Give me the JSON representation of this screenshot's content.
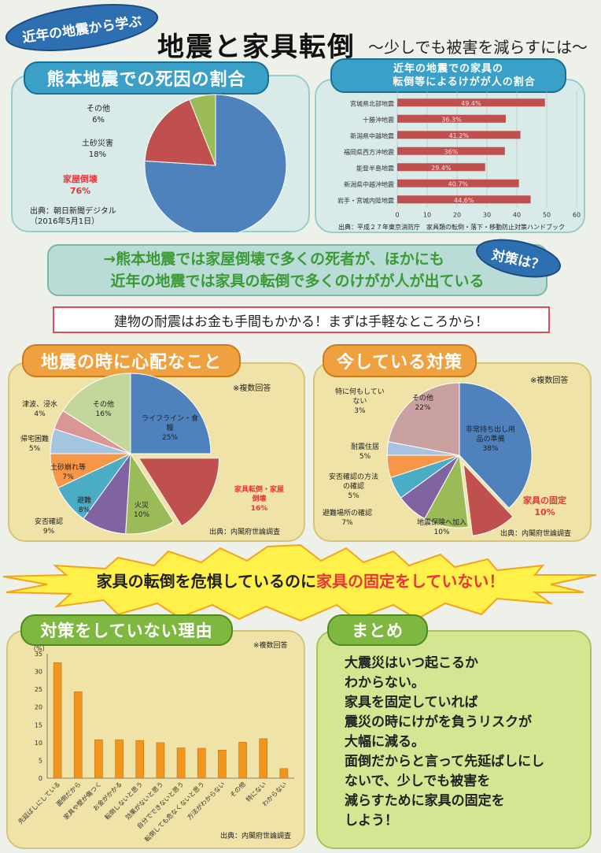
{
  "title": {
    "badge": "近年の地震から学ぶ",
    "main": "地震と家具転倒",
    "sub": "～少しでも被害を減らすには～"
  },
  "kumamoto": {
    "header": "熊本地震での死因の割合",
    "source_line1": "出典：朝日新聞デジタル",
    "source_line2": "（2016年5月1日）",
    "labels": [
      {
        "name": "その他",
        "pct": "6%"
      },
      {
        "name": "土砂災害",
        "pct": "18%"
      },
      {
        "name": "家屋倒壊",
        "pct": "76%"
      }
    ],
    "colors": {
      "house": "#4f81bd",
      "landslide": "#c0504d",
      "other": "#9bbb59",
      "highlight": "#e8333a"
    }
  },
  "injury": {
    "header_line1": "近年の地震での家具の",
    "header_line2": "転倒等によるけがが人の割合",
    "source": "出典：平成２７年東京消防庁　家具類の転倒・落下・移動防止対策ハンドブック",
    "xticks": [
      "0",
      "10",
      "20",
      "30",
      "40",
      "50",
      "60"
    ]
  },
  "conclusion": {
    "line1": "→熊本地震では家屋倒壊で多くの死者が、ほかにも",
    "line2": "近年の地震では家具の転倒で多くのけがが人が出ている",
    "bubble": "対策は？"
  },
  "tip": "建物の耐震はお金も手間もかかる！まずは手軽なところから！",
  "worry": {
    "header": "地震の時に心配なこと",
    "note": "※複数回答",
    "source": "出典：内閣府世論調査",
    "labels": [
      {
        "name": "ライフライン・食",
        "name2": "糧",
        "pct": "25%"
      },
      {
        "name": "家具転倒・家屋",
        "name2": "倒壊",
        "pct": "16%"
      },
      {
        "name": "火災",
        "pct": "10%"
      },
      {
        "name": "安否確認",
        "pct": "9%"
      },
      {
        "name": "避難",
        "pct": "8%"
      },
      {
        "name": "土砂崩れ等",
        "pct": "7%"
      },
      {
        "name": "帰宅困難",
        "pct": "5%"
      },
      {
        "name": "津波、浸水",
        "pct": "4%"
      },
      {
        "name": "その他",
        "pct": "16%"
      }
    ]
  },
  "measures": {
    "header": "今している対策",
    "note": "※複数回答",
    "source": "出典：内閣府世論調査",
    "labels": [
      {
        "name": "非常持ち出し用",
        "name2": "品の準備",
        "pct": "38%"
      },
      {
        "name": "家具の固定",
        "pct": "10%"
      },
      {
        "name": "地震保険へ加入",
        "pct": "10%"
      },
      {
        "name": "避難場所の確認",
        "pct": "7%"
      },
      {
        "name": "安否確認の方法",
        "name2": "の確認",
        "pct": "5%"
      },
      {
        "name": "耐震住居",
        "pct": "5%"
      },
      {
        "name": "特に何もしてい",
        "name2": "ない",
        "pct": "3%"
      },
      {
        "name": "その他",
        "pct": "22%"
      }
    ]
  },
  "banner": {
    "part1": "家具の転倒を危惧しているのに",
    "part2": "家具の固定をしていない！"
  },
  "reasons": {
    "header": "対策をしていない理由",
    "note": "※複数回答",
    "unit": "（%）",
    "source": "出典：内閣府世論調査"
  },
  "summary": {
    "header": "まとめ",
    "lines": [
      "大震災はいつ起こるか",
      "わからない。",
      "家具を固定していれば",
      "震災の時にけがを負うリスクが",
      "大幅に減る。",
      "面倒だからと言って先延ばしにし",
      "ないで、少しでも被害を",
      "減らすために家具の固定を",
      "しよう！"
    ]
  },
  "chart_data": [
    {
      "type": "pie",
      "title": "熊本地震での死因の割合",
      "categories": [
        "家屋倒壊",
        "土砂災害",
        "その他"
      ],
      "values": [
        76,
        18,
        6
      ]
    },
    {
      "type": "bar",
      "orientation": "horizontal",
      "title": "近年の地震での家具の転倒等によるけがが人の割合",
      "categories": [
        "宮城県北部地震",
        "十勝沖地震",
        "新潟県中越地震",
        "福岡県西方沖地震",
        "能登半島地震",
        "新潟県中越沖地震",
        "岩手・宮城内陸地震"
      ],
      "values": [
        49.4,
        36.3,
        41.2,
        36,
        29.4,
        40.7,
        44.6
      ],
      "value_labels": [
        "49.4%",
        "36.3%",
        "41.2%",
        "36%",
        "29.4%",
        "40.7%",
        "44.6%"
      ],
      "xlim": [
        0,
        60
      ],
      "color": "#c0504d"
    },
    {
      "type": "pie",
      "title": "地震の時に心配なこと",
      "categories": [
        "ライフライン・食糧",
        "家具転倒・家屋倒壊",
        "火災",
        "安否確認",
        "避難",
        "土砂崩れ等",
        "帰宅困難",
        "津波、浸水",
        "その他"
      ],
      "values": [
        25,
        16,
        10,
        9,
        8,
        7,
        5,
        4,
        16
      ],
      "colors": [
        "#4f81bd",
        "#c0504d",
        "#9bbb59",
        "#8064a2",
        "#4bacc6",
        "#f79646",
        "#a5c4e0",
        "#d99694",
        "#c3d69b"
      ],
      "exploded": [
        "家具転倒・家屋倒壊"
      ]
    },
    {
      "type": "pie",
      "title": "今している対策",
      "categories": [
        "非常持ち出し用品の準備",
        "家具の固定",
        "地震保険へ加入",
        "避難場所の確認",
        "安否確認の方法の確認",
        "耐震住居",
        "特に何もしていない",
        "その他"
      ],
      "values": [
        38,
        10,
        10,
        7,
        5,
        5,
        3,
        22
      ],
      "colors": [
        "#4f81bd",
        "#c0504d",
        "#9bbb59",
        "#8064a2",
        "#4bacc6",
        "#f79646",
        "#a5c4e0",
        "#c9a1a0"
      ],
      "exploded": [
        "家具の固定"
      ]
    },
    {
      "type": "bar",
      "title": "対策をしていない理由",
      "ylabel": "（%）",
      "categories": [
        "先延ばしにしている",
        "面倒だから",
        "家具や壁が傷つく",
        "お金がかかる",
        "転倒しないと思う",
        "効果がないと思う",
        "自分でできないと思う",
        "転倒しても危なくないと思う",
        "方法がわからない",
        "その他",
        "特にない",
        "わからない"
      ],
      "values": [
        32.5,
        24.3,
        10.8,
        10.8,
        10.6,
        10.0,
        8.5,
        8.4,
        7.9,
        10.1,
        11.1,
        2.7
      ],
      "ylim": [
        0,
        35
      ],
      "yticks": [
        0,
        5,
        10,
        15,
        20,
        25,
        30,
        35
      ],
      "color": "#f0961e"
    }
  ]
}
